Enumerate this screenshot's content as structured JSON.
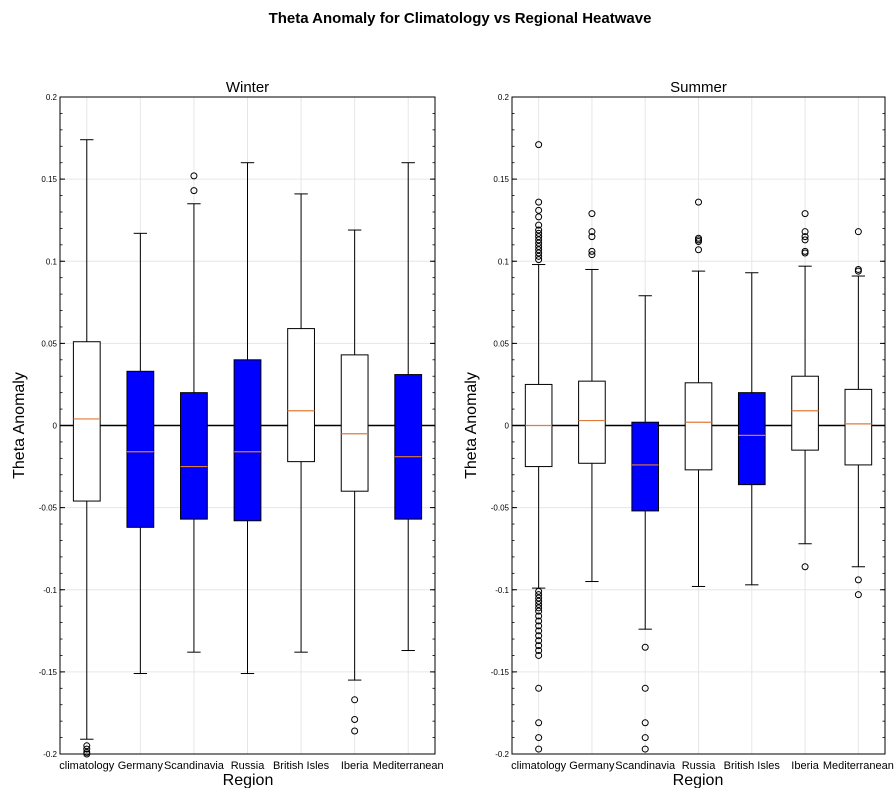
{
  "figure": {
    "suptitle": "Theta Anomaly for Climatology vs Regional Heatwave"
  },
  "chart_data": [
    {
      "type": "box",
      "title": "Winter",
      "xlabel": "Region",
      "ylabel": "Theta Anomaly",
      "ylim": [
        -0.2,
        0.2
      ],
      "yticks": [
        -0.2,
        -0.15,
        -0.1,
        -0.05,
        0,
        0.05,
        0.1,
        0.15,
        0.2
      ],
      "ytick_labels": [
        "-0.2",
        "-0.15",
        "-0.1",
        "-0.05",
        "0",
        "0.05",
        "0.1",
        "0.15",
        "0.2"
      ],
      "grid": true,
      "zero_line": true,
      "median_color": "#e07b39",
      "categories": [
        "climatology",
        "Germany",
        "Scandinavia",
        "Russia",
        "British Isles",
        "Iberia",
        "Mediterranean"
      ],
      "boxes": [
        {
          "q1": -0.046,
          "median": 0.004,
          "q3": 0.051,
          "whisker_low": -0.191,
          "whisker_high": 0.174,
          "fill": "#ffffff",
          "outliers": [
            -0.195,
            -0.197,
            -0.199,
            -0.2
          ]
        },
        {
          "q1": -0.062,
          "median": -0.016,
          "q3": 0.033,
          "whisker_low": -0.151,
          "whisker_high": 0.117,
          "fill": "#0000ff",
          "outliers": []
        },
        {
          "q1": -0.057,
          "median": -0.025,
          "q3": 0.02,
          "whisker_low": -0.138,
          "whisker_high": 0.135,
          "fill": "#0000ff",
          "outliers": [
            0.143,
            0.152
          ]
        },
        {
          "q1": -0.058,
          "median": -0.016,
          "q3": 0.04,
          "whisker_low": -0.151,
          "whisker_high": 0.16,
          "fill": "#0000ff",
          "outliers": []
        },
        {
          "q1": -0.022,
          "median": 0.009,
          "q3": 0.059,
          "whisker_low": -0.138,
          "whisker_high": 0.141,
          "fill": "#ffffff",
          "outliers": []
        },
        {
          "q1": -0.04,
          "median": -0.005,
          "q3": 0.043,
          "whisker_low": -0.155,
          "whisker_high": 0.119,
          "fill": "#ffffff",
          "outliers": [
            -0.167,
            -0.179,
            -0.186
          ]
        },
        {
          "q1": -0.057,
          "median": -0.019,
          "q3": 0.031,
          "whisker_low": -0.137,
          "whisker_high": 0.16,
          "fill": "#0000ff",
          "outliers": []
        }
      ]
    },
    {
      "type": "box",
      "title": "Summer",
      "xlabel": "Region",
      "ylabel": "Theta Anomaly",
      "ylim": [
        -0.2,
        0.2
      ],
      "yticks": [
        -0.2,
        -0.15,
        -0.1,
        -0.05,
        0,
        0.05,
        0.1,
        0.15,
        0.2
      ],
      "ytick_labels": [
        "-0.2",
        "-0.15",
        "-0.1",
        "-0.05",
        "0",
        "0.05",
        "0.1",
        "0.15",
        "0.2"
      ],
      "grid": true,
      "zero_line": true,
      "median_color": "#e07b39",
      "categories": [
        "climatology",
        "Germany",
        "Scandinavia",
        "Russia",
        "British Isles",
        "Iberia",
        "Mediterranean"
      ],
      "boxes": [
        {
          "q1": -0.025,
          "median": 0.0,
          "q3": 0.025,
          "whisker_low": -0.099,
          "whisker_high": 0.098,
          "fill": "#ffffff",
          "outliers": [
            0.171,
            0.136,
            0.131,
            0.127,
            0.122,
            0.119,
            0.117,
            0.115,
            0.113,
            0.111,
            0.109,
            0.107,
            0.105,
            0.103,
            0.101,
            -0.101,
            -0.103,
            -0.105,
            -0.107,
            -0.109,
            -0.111,
            -0.113,
            -0.116,
            -0.119,
            -0.122,
            -0.125,
            -0.128,
            -0.131,
            -0.134,
            -0.137,
            -0.14,
            -0.16,
            -0.181,
            -0.19,
            -0.197
          ]
        },
        {
          "q1": -0.023,
          "median": 0.003,
          "q3": 0.027,
          "whisker_low": -0.095,
          "whisker_high": 0.095,
          "fill": "#ffffff",
          "outliers": [
            0.129,
            0.118,
            0.115,
            0.106,
            0.104
          ]
        },
        {
          "q1": -0.052,
          "median": -0.024,
          "q3": 0.002,
          "whisker_low": -0.124,
          "whisker_high": 0.079,
          "fill": "#0000ff",
          "outliers": [
            -0.135,
            -0.16,
            -0.181,
            -0.19,
            -0.197
          ]
        },
        {
          "q1": -0.027,
          "median": 0.002,
          "q3": 0.026,
          "whisker_low": -0.098,
          "whisker_high": 0.094,
          "fill": "#ffffff",
          "outliers": [
            0.136,
            0.114,
            0.113,
            0.112,
            0.107
          ]
        },
        {
          "q1": -0.036,
          "median": -0.006,
          "q3": 0.02,
          "whisker_low": -0.097,
          "whisker_high": 0.093,
          "fill": "#0000ff",
          "outliers": []
        },
        {
          "q1": -0.015,
          "median": 0.009,
          "q3": 0.03,
          "whisker_low": -0.072,
          "whisker_high": 0.097,
          "fill": "#ffffff",
          "outliers": [
            0.129,
            0.118,
            0.115,
            0.113,
            0.106,
            0.105,
            -0.086
          ]
        },
        {
          "q1": -0.024,
          "median": 0.001,
          "q3": 0.022,
          "whisker_low": -0.086,
          "whisker_high": 0.091,
          "fill": "#ffffff",
          "outliers": [
            0.118,
            0.095,
            0.094,
            -0.094,
            -0.103
          ]
        }
      ]
    }
  ]
}
